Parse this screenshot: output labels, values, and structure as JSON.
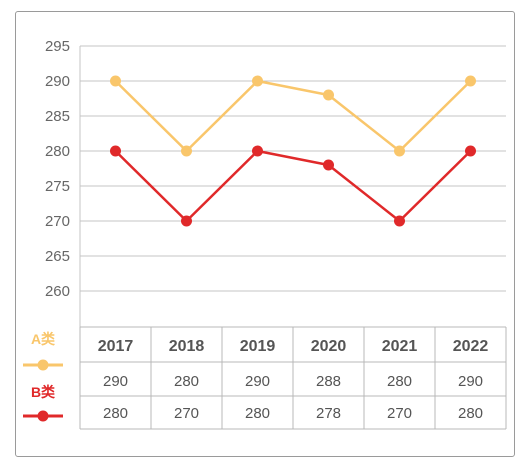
{
  "chart_data": {
    "type": "line",
    "x": [
      "2017",
      "2018",
      "2019",
      "2020",
      "2021",
      "2022"
    ],
    "ylim": [
      260,
      295
    ],
    "yticks": [
      295,
      290,
      285,
      280,
      275,
      270,
      265,
      260
    ],
    "grid": true,
    "legend_placement": "bottom-left",
    "series": [
      {
        "name": "A类",
        "color": "#f9c66b",
        "values": [
          290,
          280,
          290,
          288,
          280,
          290
        ],
        "table_values": [
          "290",
          "280",
          "290",
          "288",
          "280",
          "290"
        ]
      },
      {
        "name": "B类",
        "color": "#e0292a",
        "values": [
          280,
          270,
          280,
          278,
          270,
          280
        ],
        "table_values": [
          "280",
          "270",
          "280",
          "278",
          "270",
          "280"
        ]
      }
    ]
  }
}
